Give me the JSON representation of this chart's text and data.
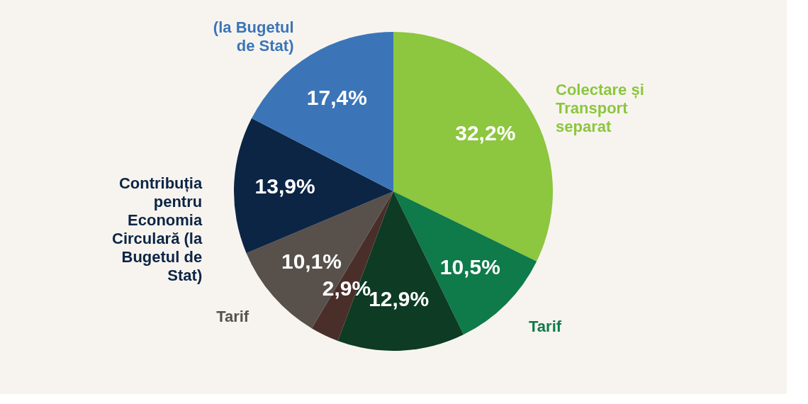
{
  "chart_data": {
    "type": "pie",
    "categories": [
      "Colectare și Transport separat",
      "Tarif",
      null,
      null,
      "Tarif",
      "Contribuția pentru Economia Circulară (la Bugetul de Stat)",
      "(la Bugetul de Stat)"
    ],
    "values": [
      32.2,
      10.5,
      12.9,
      2.9,
      10.1,
      13.9,
      17.4
    ],
    "value_labels": [
      "32,2%",
      "10,5%",
      "12,9%",
      "2,9%",
      "10,1%",
      "13,9%",
      "17,4%"
    ],
    "colors": [
      "#8dc63f",
      "#0f7a4a",
      "#0d3b24",
      "#4a2e2a",
      "#58504b",
      "#0c2545",
      "#3b75b8"
    ],
    "legend": false
  }
}
